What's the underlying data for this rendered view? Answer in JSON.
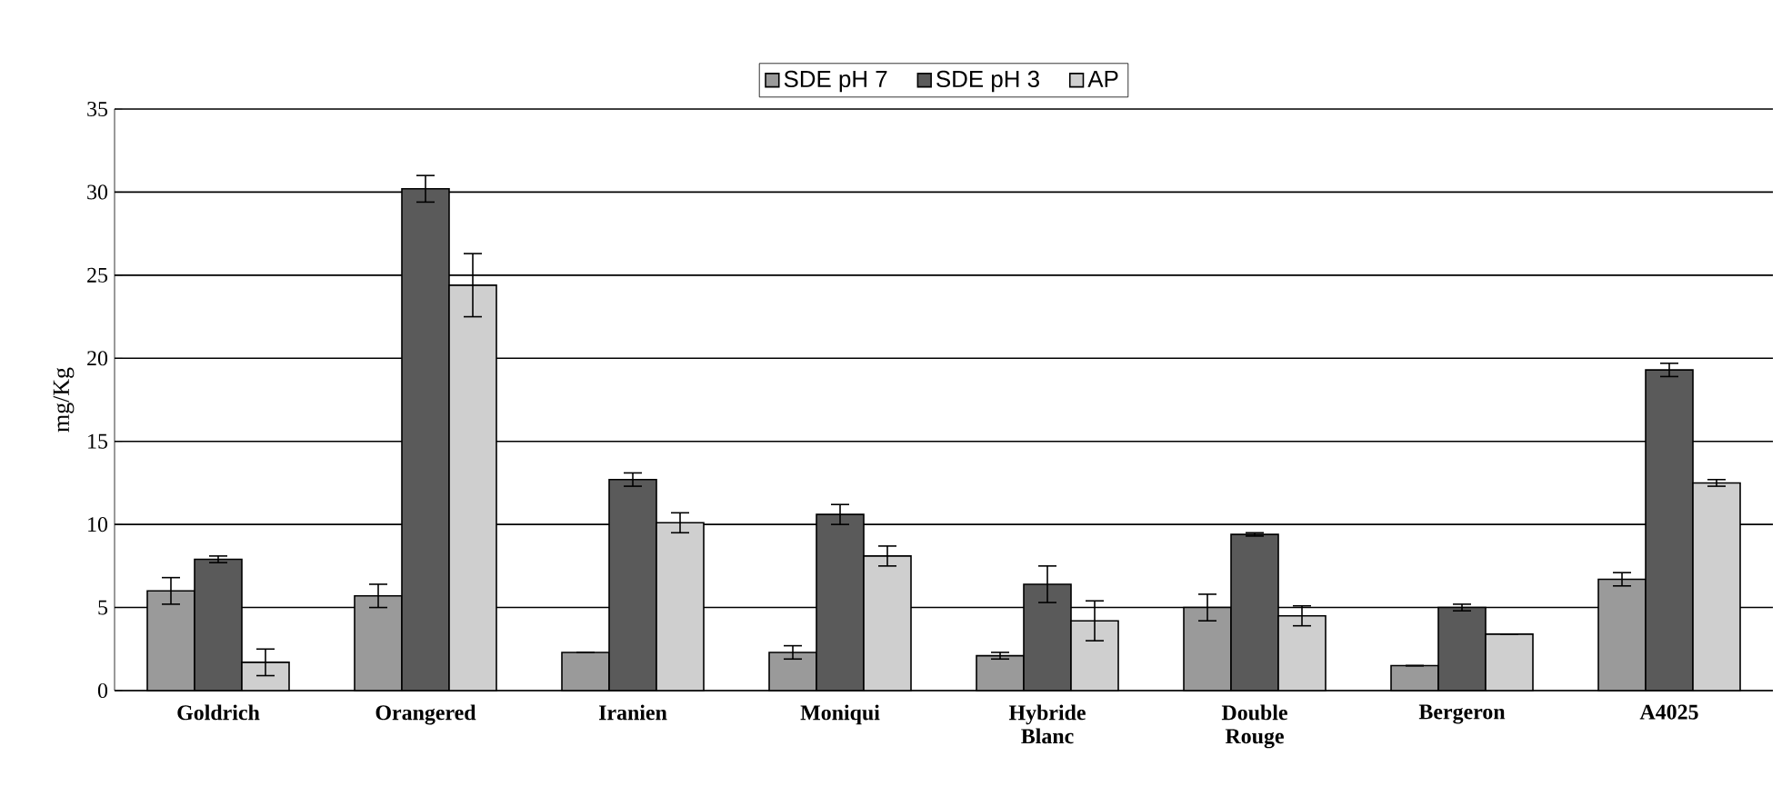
{
  "chart_data": {
    "type": "bar",
    "ylabel": "mg/Kg",
    "categories": [
      "Goldrich",
      "Orangered",
      "Iranien",
      "Moniqui",
      "Hybride Blanc",
      "Double Rouge",
      "Bergeron",
      "A4025"
    ],
    "series": [
      {
        "name": "SDE pH 7",
        "color": "#9a9a9a",
        "values": [
          6.0,
          5.7,
          2.3,
          2.3,
          2.1,
          5.0,
          1.5,
          6.7
        ],
        "errors": [
          0.8,
          0.7,
          null,
          0.4,
          0.2,
          0.8,
          null,
          0.4
        ]
      },
      {
        "name": "SDE pH 3",
        "color": "#5a5a5a",
        "values": [
          7.9,
          30.2,
          12.7,
          10.6,
          6.4,
          9.4,
          5.0,
          19.3
        ],
        "errors": [
          0.2,
          0.8,
          0.4,
          0.6,
          1.1,
          0.1,
          0.2,
          0.4
        ]
      },
      {
        "name": "AP",
        "color": "#cfcfcf",
        "values": [
          1.7,
          24.4,
          10.1,
          8.1,
          4.2,
          4.5,
          3.4,
          12.5
        ],
        "errors": [
          0.8,
          1.9,
          0.6,
          0.6,
          1.2,
          0.6,
          null,
          0.2
        ]
      }
    ],
    "ylim": [
      0,
      35
    ],
    "yticks": [
      0,
      5,
      10,
      15,
      20,
      25,
      30,
      35
    ],
    "grid": "y",
    "legend": "top"
  }
}
